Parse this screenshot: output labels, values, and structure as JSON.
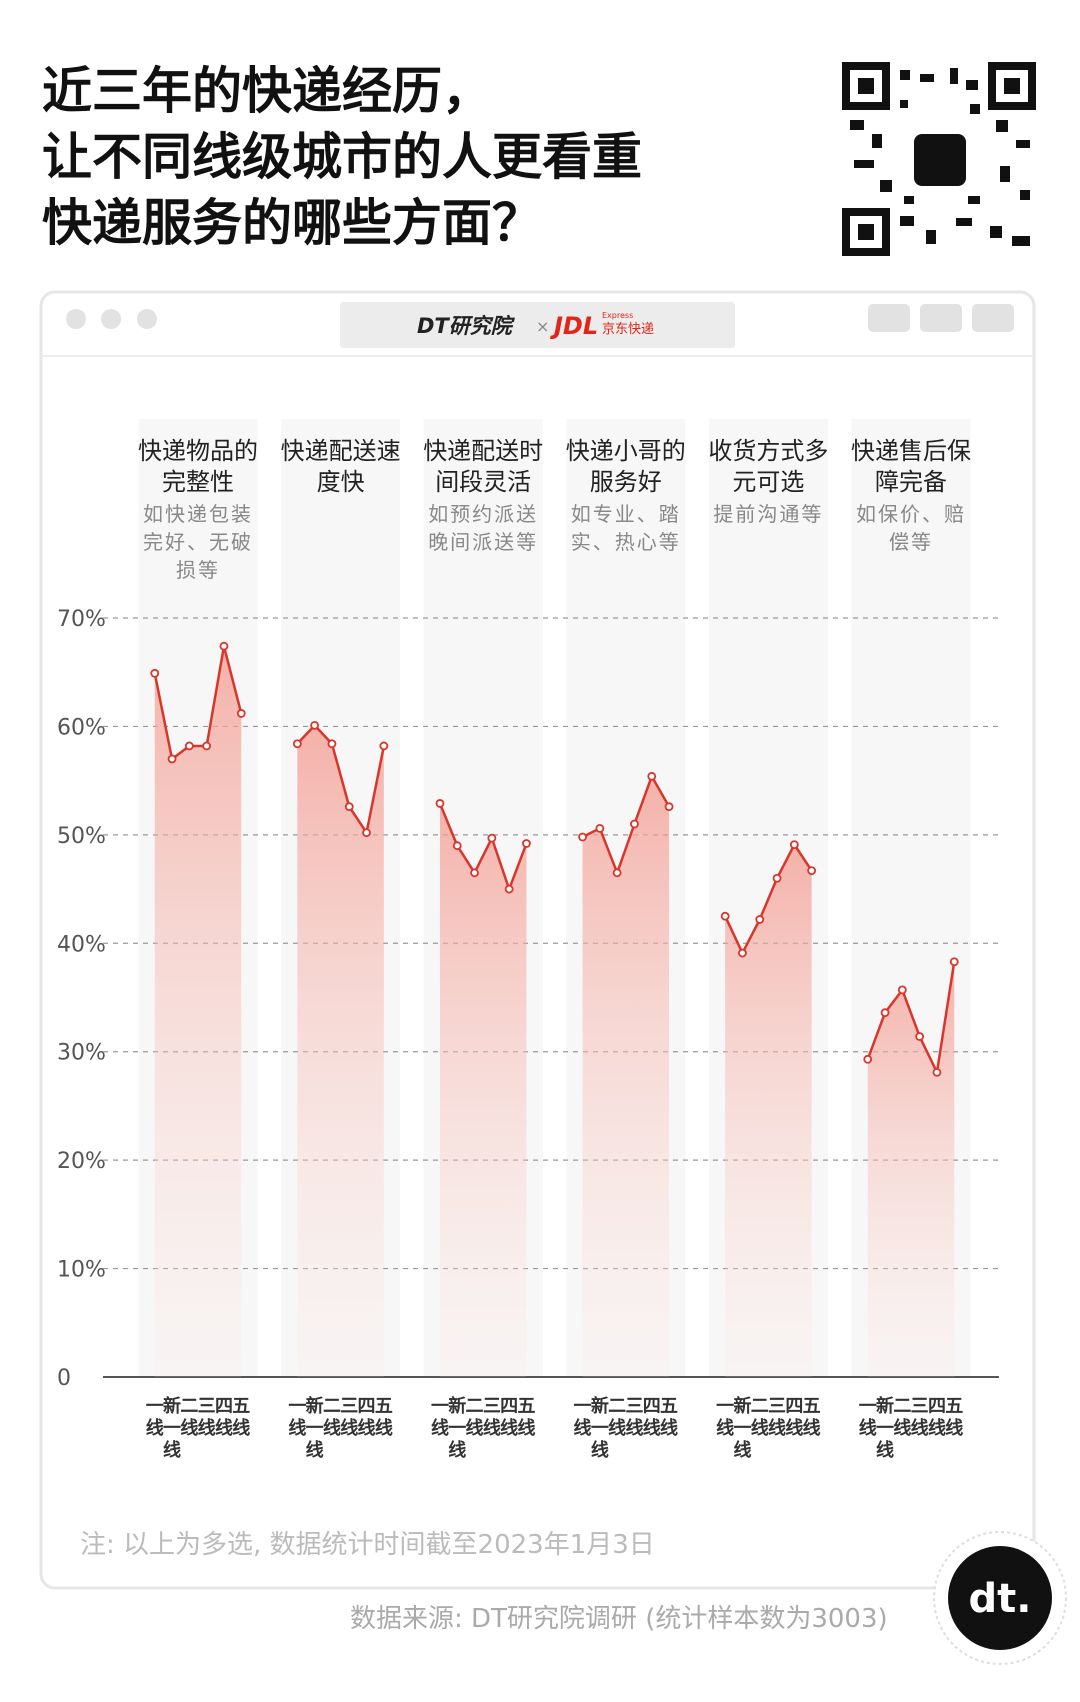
{
  "header": {
    "title": [
      "近三年的快递经历，",
      "让不同线级城市的人更看重",
      "快递服务的哪些方面？"
    ],
    "brand_left": "DT研究院",
    "brand_cross": "×",
    "brand_right": "JDL",
    "brand_right_sub": "Express",
    "brand_right_name": "京东快递"
  },
  "chart_data": {
    "type": "line",
    "categories": [
      "一线",
      "新一线",
      "二线",
      "三线",
      "四线",
      "五线"
    ],
    "series": [
      {
        "name": "快递物品的完整性",
        "description": "如快递包装完好、无破损等",
        "color": "#d9352b",
        "values": [
          64.9,
          57.0,
          58.2,
          58.2,
          67.4,
          61.2
        ]
      },
      {
        "name": "快递配送速度快",
        "description": null,
        "color": "#d9352b",
        "values": [
          58.4,
          60.1,
          58.4,
          52.6,
          50.2,
          58.2
        ]
      },
      {
        "name": "快递配送时间段灵活",
        "description": "如预约派送晚间派送等",
        "color": "#d9352b",
        "values": [
          52.9,
          49.0,
          46.5,
          49.7,
          45.0,
          49.2
        ]
      },
      {
        "name": "快递小哥的服务好",
        "description": "如专业、踏实、热心等",
        "color": "#d9352b",
        "values": [
          49.8,
          50.6,
          46.5,
          51.0,
          55.4,
          52.6
        ]
      },
      {
        "name": "收货方式多元可选",
        "description": "提前沟通等",
        "color": "#d9352b",
        "values": [
          42.5,
          39.1,
          42.2,
          46.0,
          49.1,
          46.7
        ]
      },
      {
        "name": "快递售后保障完备",
        "description": "如保价、赔偿等",
        "color": "#d9352b",
        "values": [
          29.3,
          33.6,
          35.7,
          31.4,
          28.1,
          38.3
        ]
      }
    ],
    "ylim": [
      0,
      70
    ],
    "yticks": [
      0,
      {
        "value": 10,
        "label": "10%"
      },
      {
        "value": 20,
        "label": "20%"
      },
      {
        "value": 30,
        "label": "30%"
      },
      {
        "value": 40,
        "label": "40%"
      },
      {
        "value": 50,
        "label": "50%"
      },
      {
        "value": 60,
        "label": "60%"
      },
      {
        "value": 70,
        "label": "70%"
      }
    ],
    "grid": true
  },
  "footer": {
    "note": "注: 以上为多选, 数据统计时间截至2023年1月3日",
    "source": "数据来源: DT研究院调研 (统计样本数为3003)",
    "logo": "dt."
  }
}
